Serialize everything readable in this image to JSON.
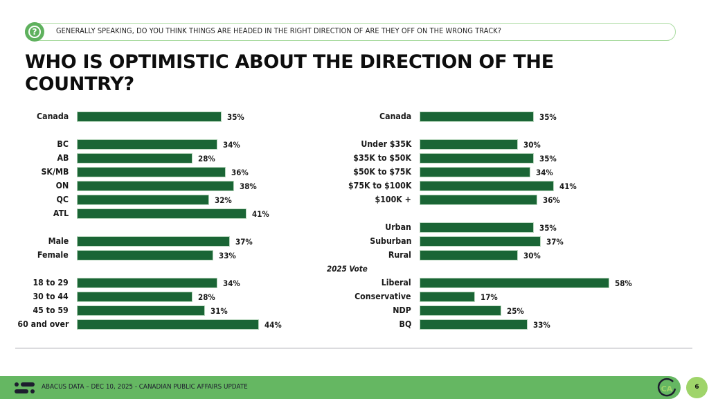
{
  "question": {
    "icon": "question-mark-icon",
    "text": "GENERALLY SPEAKING, DO YOU THINK THINGS ARE HEADED IN THE RIGHT DIRECTION OF ARE THEY OFF ON THE WRONG TRACK?"
  },
  "title": "WHO IS OPTIMISTIC ABOUT THE DIRECTION OF THE COUNTRY?",
  "chart_data": [
    {
      "type": "bar",
      "orientation": "horizontal",
      "title": "",
      "xlabel": "",
      "ylabel": "",
      "value_suffix": "%",
      "categories": [
        "Canada",
        "BC",
        "AB",
        "SK/MB",
        "ON",
        "QC",
        "ATL",
        "Male",
        "Female",
        "18 to 29",
        "30 to 44",
        "45 to 59",
        "60 and over"
      ],
      "values": [
        35,
        34,
        28,
        36,
        38,
        32,
        41,
        37,
        33,
        34,
        28,
        31,
        44
      ],
      "group_breaks_after": [
        "Canada",
        "ATL",
        "Female"
      ],
      "color": "#1a6535",
      "grid": false,
      "xlim": [
        0,
        100
      ]
    },
    {
      "type": "bar",
      "orientation": "horizontal",
      "title": "",
      "xlabel": "",
      "ylabel": "",
      "value_suffix": "%",
      "categories": [
        "Canada",
        "Under $35K",
        "$35K to $50K",
        "$50K to $75K",
        "$75K to $100K",
        "$100K +",
        "Urban",
        "Suburban",
        "Rural",
        "Liberal",
        "Conservative",
        "NDP",
        "BQ"
      ],
      "values": [
        35,
        30,
        35,
        34,
        41,
        36,
        35,
        37,
        30,
        58,
        17,
        25,
        33
      ],
      "group_breaks_after": [
        "Canada",
        "$100K +",
        "Rural"
      ],
      "group_titles": [
        {
          "before": "Liberal",
          "text": "2025 Vote"
        }
      ],
      "color": "#1a6535",
      "grid": false,
      "xlim": [
        0,
        100
      ]
    }
  ],
  "footer": {
    "logo": "abacus-logo-icon",
    "text": "ABACUS DATA  – DEC 10, 2025 - CANADIAN PUBLIC AFFAIRS UPDATE",
    "badge": "CA",
    "page_number": "6"
  },
  "colors": {
    "bar": "#1a6535",
    "footer": "#65b762",
    "page_badge": "#9fd46a",
    "question_border": "#a9dba0"
  }
}
